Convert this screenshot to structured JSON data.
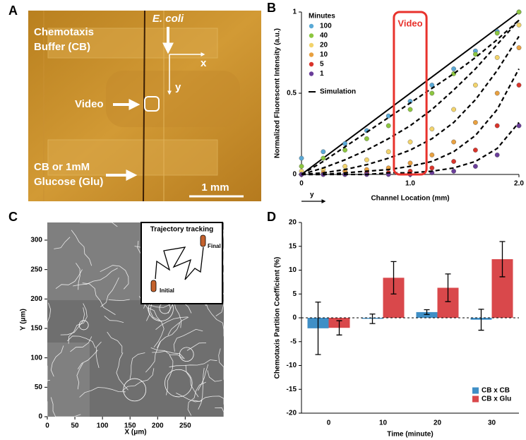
{
  "figure": {
    "panel_labels": [
      "A",
      "B",
      "C",
      "D"
    ]
  },
  "panel_a": {
    "texts": [
      "Chemotaxis",
      "Buffer (CB)",
      "E. coli",
      "x",
      "y",
      "Video",
      "CB or 1mM",
      "Glucose (Glu)",
      "1 mm"
    ]
  },
  "chart_data": [
    {
      "type": "scatter",
      "xlabel": "Channel Location (mm)",
      "ylabel": "Normalized Fluorescent Intensity (a.u.)",
      "xlim": [
        0,
        2
      ],
      "ylim": [
        0,
        1
      ],
      "xticks": [
        0,
        {
          "value": 1,
          "label": "1.0"
        },
        {
          "value": 2,
          "label": "2.0"
        }
      ],
      "yticks": [
        0,
        0.5,
        1
      ],
      "legend_title": "Minutes",
      "legend": "upper left",
      "x": [
        0,
        0.2,
        0.4,
        0.6,
        0.8,
        1.0,
        1.2,
        1.4,
        1.6,
        1.8,
        2.0
      ],
      "series": [
        {
          "name": "100",
          "color": "#5aa9d6",
          "values": [
            0.1,
            0.14,
            0.19,
            0.27,
            0.36,
            0.45,
            0.55,
            0.65,
            0.76,
            0.88,
            1.0
          ]
        },
        {
          "name": "40",
          "color": "#8cc63f",
          "values": [
            0.05,
            0.1,
            0.15,
            0.22,
            0.3,
            0.4,
            0.5,
            0.62,
            0.74,
            0.87,
            1.0
          ]
        },
        {
          "name": "20",
          "color": "#f2d36b",
          "values": [
            0.02,
            0.03,
            0.05,
            0.09,
            0.14,
            0.2,
            0.28,
            0.4,
            0.55,
            0.72,
            0.92
          ]
        },
        {
          "name": "10",
          "color": "#e8a040",
          "values": [
            0,
            0.01,
            0.02,
            0.03,
            0.04,
            0.07,
            0.12,
            0.2,
            0.32,
            0.5,
            0.78
          ]
        },
        {
          "name": "5",
          "color": "#d9342b",
          "values": [
            0,
            0,
            0,
            0.01,
            0.01,
            0.02,
            0.04,
            0.08,
            0.15,
            0.3,
            0.55
          ]
        },
        {
          "name": "1",
          "color": "#6a3d9a",
          "values": [
            0,
            0,
            0,
            0,
            0,
            0,
            0.01,
            0.02,
            0.05,
            0.12,
            0.3
          ]
        }
      ],
      "simulation": {
        "name": "Simulation",
        "color": "#000000",
        "curves": [
          [
            0,
            0.08,
            0.17,
            0.26,
            0.35,
            0.44,
            0.53,
            0.62,
            0.72,
            0.83,
            0.95
          ],
          [
            0,
            0.04,
            0.09,
            0.15,
            0.22,
            0.3,
            0.4,
            0.52,
            0.65,
            0.8,
            0.95
          ],
          [
            0,
            0.01,
            0.03,
            0.06,
            0.1,
            0.15,
            0.22,
            0.32,
            0.46,
            0.64,
            0.85
          ],
          [
            0,
            0,
            0.01,
            0.02,
            0.03,
            0.05,
            0.08,
            0.14,
            0.24,
            0.4,
            0.65
          ],
          [
            0,
            0,
            0,
            0,
            0.01,
            0.01,
            0.02,
            0.04,
            0.08,
            0.16,
            0.32
          ]
        ]
      },
      "reference": {
        "color": "#000000",
        "x": [
          0,
          2
        ],
        "values": [
          0,
          1
        ]
      },
      "annotation": {
        "text": "Video",
        "x": [
          0.85,
          1.15
        ],
        "color": "#e8322c"
      },
      "axis_note": "y"
    },
    {
      "type": "image",
      "xlabel": "X (μm)",
      "ylabel": "Y (μm)",
      "xlim": [
        0,
        320
      ],
      "ylim": [
        0,
        330
      ],
      "xticks": [
        0,
        50,
        100,
        150,
        200,
        250
      ],
      "yticks": [
        0,
        50,
        100,
        150,
        200,
        250,
        300
      ],
      "inset": {
        "title": "Trajectory tracking",
        "start": "Initial",
        "end": "Final"
      }
    },
    {
      "type": "bar",
      "xlabel": "Time (minute)",
      "ylabel": "Chemotaxis Partition Coefficient (%)",
      "categories": [
        "0",
        "10",
        "20",
        "30"
      ],
      "series": [
        {
          "name": "CB x CB",
          "color": "#3f8fc6",
          "values": [
            -2.2,
            -0.2,
            1.2,
            -0.4
          ],
          "errors": [
            5.5,
            1.0,
            0.5,
            2.2
          ]
        },
        {
          "name": "CB x Glu",
          "color": "#d9484b",
          "values": [
            -2.1,
            8.4,
            6.3,
            12.3
          ],
          "errors": [
            1.5,
            3.4,
            2.9,
            3.7
          ]
        }
      ],
      "ylim": [
        -20,
        20
      ],
      "yticks": [
        -20,
        -15,
        -10,
        -5,
        0,
        5,
        10,
        15,
        20
      ],
      "legend": "lower right",
      "zero_line": true
    }
  ]
}
